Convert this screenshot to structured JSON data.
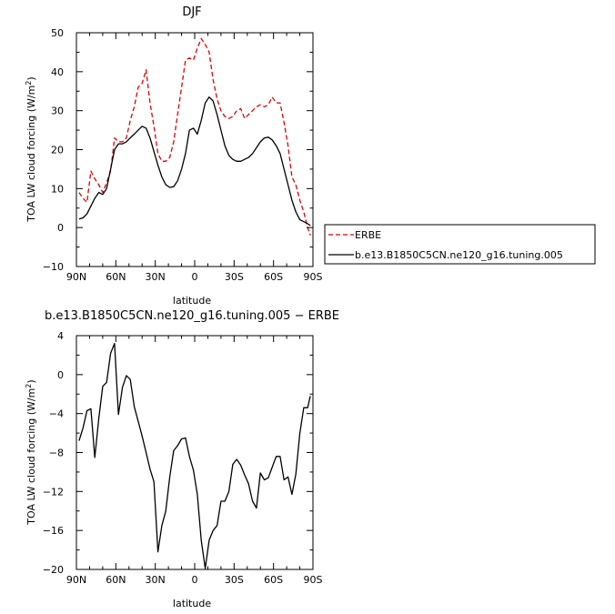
{
  "chart_data": [
    {
      "type": "line",
      "title": "DJF",
      "xlabel": "latitude",
      "ylabel": "TOA LW cloud forcing (W/m²)",
      "ylabel_main": "TOA LW cloud forcing (W/m",
      "ylabel_sup": "2",
      "ylabel_tail": ")",
      "xlim": [
        -90,
        90
      ],
      "ylim": [
        -10,
        50
      ],
      "x_ticks": [
        -90,
        -60,
        -30,
        0,
        30,
        60,
        90
      ],
      "x_tick_labels": [
        "90N",
        "60N",
        "30N",
        "0",
        "30S",
        "60S",
        "90S"
      ],
      "y_ticks": [
        -10,
        0,
        10,
        20,
        30,
        40,
        50
      ],
      "y_tick_labels": [
        "−10",
        "0",
        "10",
        "20",
        "30",
        "40",
        "50"
      ],
      "legend": "right",
      "series": [
        {
          "name": "ERBE",
          "color": "#e00000",
          "dash": true,
          "x": [
            -88,
            -85,
            -82,
            -79,
            -76,
            -73,
            -70,
            -67,
            -64,
            -61,
            -58,
            -55,
            -52,
            -49,
            -46,
            -43,
            -40,
            -37,
            -34,
            -31,
            -28,
            -25,
            -22,
            -19,
            -16,
            -13,
            -10,
            -7,
            -4,
            -1,
            2,
            5,
            8,
            11,
            14,
            17,
            20,
            23,
            26,
            29,
            32,
            35,
            38,
            41,
            44,
            47,
            50,
            53,
            56,
            59,
            62,
            65,
            68,
            71,
            74,
            77,
            80,
            83,
            86,
            88
          ],
          "values": [
            9,
            7.5,
            6.5,
            14.5,
            12.5,
            11,
            9,
            11.5,
            14.5,
            23,
            22,
            22,
            23,
            27.5,
            31,
            36,
            37,
            40.5,
            32,
            26,
            19,
            17,
            17,
            18,
            22,
            29,
            36,
            43,
            43.5,
            43,
            46,
            48.5,
            47,
            45,
            38,
            33,
            30,
            28.5,
            28,
            28.5,
            30,
            30.5,
            28,
            29,
            30,
            31,
            31.5,
            31,
            31.5,
            33.5,
            32,
            32,
            27,
            21,
            13,
            11,
            7,
            4,
            0,
            -2
          ]
        },
        {
          "name": "b.e13.B1850C5CN.ne120_g16.tuning.005",
          "color": "#000000",
          "dash": false,
          "x": [
            -88,
            -85,
            -82,
            -79,
            -76,
            -73,
            -70,
            -67,
            -64,
            -61,
            -58,
            -55,
            -52,
            -49,
            -46,
            -43,
            -40,
            -37,
            -34,
            -31,
            -28,
            -25,
            -22,
            -19,
            -16,
            -13,
            -10,
            -7,
            -4,
            -1,
            2,
            5,
            8,
            11,
            14,
            17,
            20,
            23,
            26,
            29,
            32,
            35,
            38,
            41,
            44,
            47,
            50,
            53,
            56,
            59,
            62,
            65,
            68,
            71,
            74,
            77,
            80,
            83,
            86,
            88
          ],
          "values": [
            2.2,
            2.5,
            3.5,
            5.5,
            7.5,
            9,
            8.5,
            10,
            15,
            20,
            21.5,
            21.5,
            22,
            23,
            24,
            25,
            26,
            25.5,
            23,
            19.5,
            16,
            13,
            11,
            10.3,
            10.5,
            12,
            15,
            19,
            25,
            25.5,
            24,
            27.5,
            32,
            33.5,
            32.5,
            29,
            25,
            21,
            18.5,
            17.5,
            17,
            17,
            17.5,
            18,
            19,
            20.5,
            22,
            23,
            23.2,
            22.5,
            21,
            19,
            15,
            11,
            7,
            4,
            2,
            1.5,
            1,
            0.5
          ]
        }
      ]
    },
    {
      "type": "line",
      "title": "b.e13.B1850C5CN.ne120_g16.tuning.005 − ERBE",
      "xlabel": "latitude",
      "ylabel": "TOA LW cloud forcing (W/m²)",
      "ylabel_main": "TOA LW cloud forcing (W/m",
      "ylabel_sup": "2",
      "ylabel_tail": ")",
      "xlim": [
        -90,
        90
      ],
      "ylim": [
        -20,
        4
      ],
      "x_ticks": [
        -90,
        -60,
        -30,
        0,
        30,
        60,
        90
      ],
      "x_tick_labels": [
        "90N",
        "60N",
        "30N",
        "0",
        "30S",
        "60S",
        "90S"
      ],
      "y_ticks": [
        -20,
        -16,
        -12,
        -8,
        -4,
        0,
        4
      ],
      "y_tick_labels": [
        "−20",
        "−16",
        "−12",
        "−8",
        "−4",
        "0",
        "4"
      ],
      "series": [
        {
          "color": "#000000",
          "dash": false,
          "x": [
            -88,
            -85,
            -82,
            -79,
            -76,
            -73,
            -70,
            -67,
            -64,
            -61,
            -58,
            -55,
            -52,
            -49,
            -46,
            -43,
            -40,
            -37,
            -34,
            -31,
            -28,
            -25,
            -22,
            -19,
            -16,
            -13,
            -10,
            -7,
            -4,
            -1,
            2,
            5,
            8,
            11,
            14,
            17,
            20,
            23,
            26,
            29,
            32,
            35,
            38,
            41,
            44,
            47,
            50,
            53,
            56,
            59,
            62,
            65,
            68,
            71,
            74,
            77,
            80,
            83,
            86,
            88
          ],
          "values": [
            -6.8,
            -5.5,
            -3.7,
            -3.5,
            -8.5,
            -4.5,
            -1.2,
            -0.8,
            2.2,
            3.2,
            -4.1,
            -1.3,
            -0.1,
            -0.5,
            -3.3,
            -4.8,
            -6.3,
            -8,
            -9.7,
            -11,
            -18.2,
            -15.5,
            -14,
            -10.5,
            -7.8,
            -7.3,
            -6.6,
            -6.5,
            -8.4,
            -9.8,
            -12.3,
            -17,
            -19.9,
            -17,
            -16,
            -15.5,
            -13,
            -13,
            -12,
            -9.2,
            -8.7,
            -9.3,
            -10.3,
            -11.2,
            -13,
            -13.7,
            -10.1,
            -10.8,
            -10.6,
            -9.5,
            -8.4,
            -8.4,
            -10.8,
            -10.5,
            -12.3,
            -10.2,
            -6,
            -3.4,
            -3.4,
            -2.2
          ]
        }
      ]
    }
  ]
}
